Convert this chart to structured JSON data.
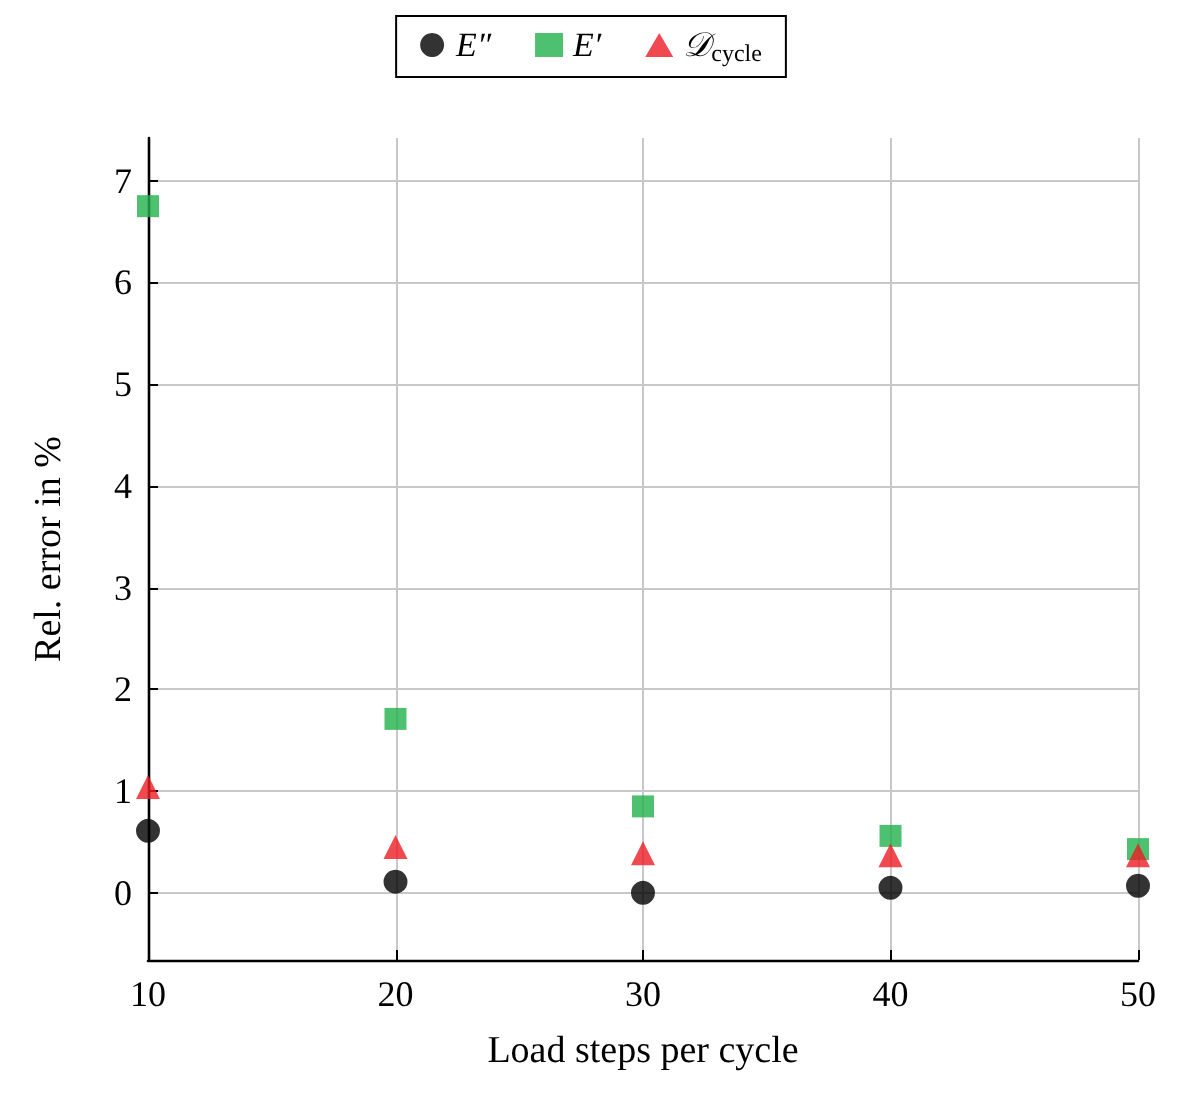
{
  "chart_data": {
    "type": "scatter",
    "xlabel": "Load steps per cycle",
    "ylabel": "Rel. error in %",
    "x": [
      10,
      20,
      30,
      40,
      50
    ],
    "series": [
      {
        "name": "E″",
        "color": "#000000",
        "marker": "circle",
        "values": [
          0.61,
          0.11,
          0.0,
          0.05,
          0.07
        ]
      },
      {
        "name": "E′",
        "color": "#22b14c",
        "marker": "square",
        "values": [
          6.75,
          1.71,
          0.85,
          0.56,
          0.43
        ]
      },
      {
        "name": "𝒟$_{cycle}$",
        "color": "#ed1c24",
        "marker": "triangle",
        "values": [
          1.04,
          0.45,
          0.39,
          0.37,
          0.37
        ]
      }
    ],
    "xlim": [
      10,
      50
    ],
    "xticks": [
      10,
      20,
      30,
      40,
      50
    ],
    "ylim": [
      -0.66,
      7.42
    ],
    "yticks": [
      0,
      1,
      2,
      3,
      4,
      5,
      6,
      7
    ],
    "grid": true,
    "legend": "top"
  }
}
